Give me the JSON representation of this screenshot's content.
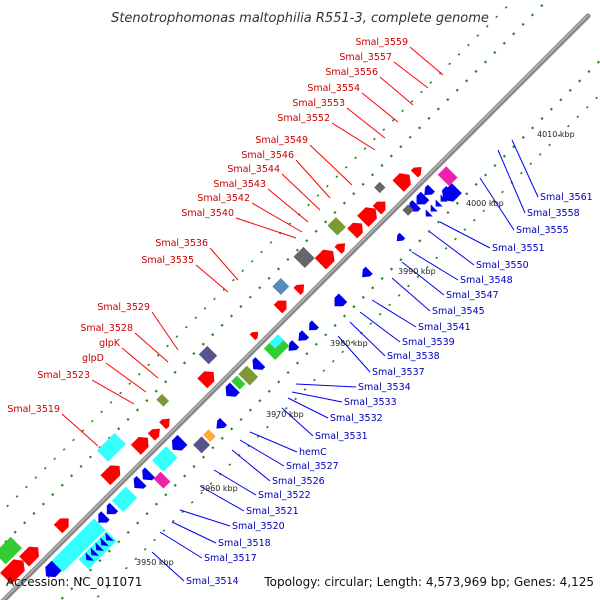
{
  "title": "Stenotrophomonas maltophilia R551-3, complete genome",
  "accession": "Accession: NC_011071",
  "summary": "Topology: circular; Length: 4,573,969 bp; Genes: 4,125",
  "colors": {
    "forward": "#ff0000",
    "reverse": "#0000ee",
    "backbone": "#888888",
    "tick": "#1c8a1c",
    "cyan": "#33ffff",
    "olive": "#7a9a33",
    "purple": "#55558c",
    "grey": "#666666",
    "magenta": "#ee22aa",
    "steel": "#5a8ab8",
    "orange": "#ffaa33",
    "green": "#33cc33"
  },
  "position_labels": [
    "3950 kbp",
    "3960 kbp",
    "3970 kbp",
    "3980 kbp",
    "3990 kbp",
    "4000 kbp",
    "4010 kbp"
  ],
  "top_genes": [
    "Smal_3559",
    "Smal_3557",
    "Smal_3556",
    "Smal_3554",
    "Smal_3553",
    "Smal_3552",
    "Smal_3549",
    "Smal_3546",
    "Smal_3544",
    "Smal_3543",
    "Smal_3542",
    "Smal_3540",
    "Smal_3536",
    "Smal_3535",
    "Smal_3529",
    "Smal_3528",
    "glpK",
    "glpD",
    "Smal_3523",
    "Smal_3519"
  ],
  "bottom_genes": [
    "Smal_3561",
    "Smal_3558",
    "Smal_3555",
    "Smal_3551",
    "Smal_3550",
    "Smal_3548",
    "Smal_3547",
    "Smal_3545",
    "Smal_3541",
    "Smal_3539",
    "Smal_3538",
    "Smal_3537",
    "Smal_3534",
    "Smal_3533",
    "Smal_3532",
    "Smal_3531",
    "hemC",
    "Smal_3527",
    "Smal_3526",
    "Smal_3522",
    "Smal_3521",
    "Smal_3520",
    "Smal_3518",
    "Smal_3517",
    "Smal_3514"
  ]
}
